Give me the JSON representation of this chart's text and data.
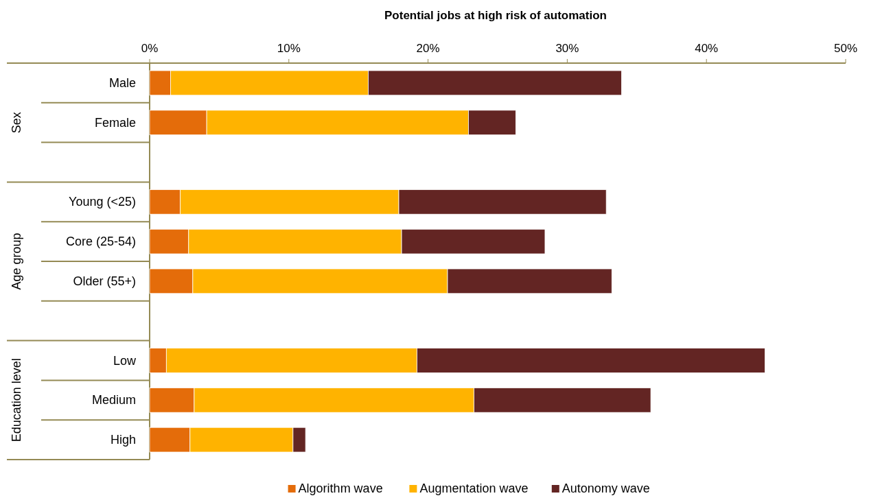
{
  "chart_data": {
    "type": "bar",
    "orientation": "horizontal",
    "stacked": true,
    "xlabel": "Potential jobs at high risk of automation",
    "categories": [
      "Male",
      "Female",
      null,
      "Young (<25)",
      "Core (25-54)",
      "Older (55+)",
      null,
      "Low",
      "Medium",
      "High"
    ],
    "annotations": [
      "Sex",
      "Age group",
      "Education level"
    ],
    "series": [
      {
        "name": "Algorithm wave",
        "color": "#e46c0a",
        "values": [
          1.5,
          4.1,
          null,
          2.2,
          2.8,
          3.1,
          null,
          1.2,
          3.2,
          2.9
        ]
      },
      {
        "name": "Augmentation wave",
        "color": "#ffb300",
        "values": [
          14.2,
          18.8,
          null,
          15.7,
          15.3,
          18.3,
          null,
          18.0,
          20.1,
          7.4
        ]
      },
      {
        "name": "Autonomy wave",
        "color": "#632523",
        "values": [
          18.2,
          3.4,
          null,
          14.9,
          10.3,
          11.8,
          null,
          25.0,
          12.7,
          0.9
        ]
      }
    ],
    "xlim": [
      0,
      50
    ],
    "xticks": [
      {
        "value": 0,
        "label": "0%"
      },
      {
        "value": 10,
        "label": "10%"
      },
      {
        "value": 20,
        "label": "20%"
      },
      {
        "value": 30,
        "label": "30%"
      },
      {
        "value": 40,
        "label": "40%"
      },
      {
        "value": 50,
        "label": "50%"
      }
    ],
    "legend": "bottom"
  }
}
